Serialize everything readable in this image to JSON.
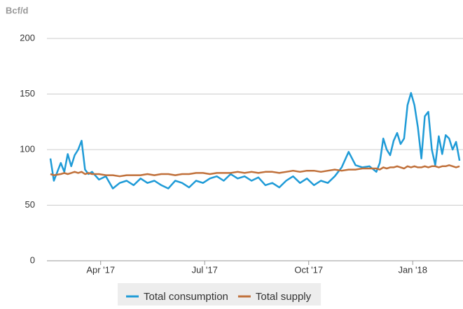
{
  "chart_data": {
    "type": "line",
    "y_label": "Bcf/d",
    "x": [
      1.55,
      1.65,
      1.85,
      1.95,
      2.05,
      2.15,
      2.25,
      2.35,
      2.45,
      2.55,
      2.65,
      2.75,
      2.95,
      3.15,
      3.35,
      3.55,
      3.75,
      3.95,
      4.15,
      4.35,
      4.55,
      4.75,
      4.95,
      5.15,
      5.35,
      5.55,
      5.75,
      5.95,
      6.15,
      6.35,
      6.55,
      6.75,
      6.95,
      7.15,
      7.35,
      7.55,
      7.75,
      7.95,
      8.15,
      8.35,
      8.55,
      8.75,
      8.95,
      9.15,
      9.35,
      9.55,
      9.75,
      9.95,
      10.15,
      10.35,
      10.55,
      10.75,
      10.95,
      11.05,
      11.15,
      11.25,
      11.35,
      11.45,
      11.55,
      11.65,
      11.75,
      11.85,
      11.95,
      12.05,
      12.15,
      12.25,
      12.35,
      12.45,
      12.55,
      12.65,
      12.75,
      12.85,
      12.95,
      13.05,
      13.15,
      13.25,
      13.35
    ],
    "series": [
      {
        "name": "Total consumption",
        "color": "#1f9bd7",
        "values": [
          92,
          72,
          88,
          80,
          96,
          85,
          95,
          100,
          108,
          82,
          78,
          80,
          73,
          76,
          65,
          70,
          72,
          68,
          74,
          70,
          72,
          68,
          65,
          72,
          70,
          66,
          72,
          70,
          74,
          76,
          72,
          78,
          74,
          76,
          72,
          75,
          68,
          70,
          66,
          72,
          76,
          70,
          74,
          68,
          72,
          70,
          76,
          84,
          98,
          86,
          84,
          85,
          80,
          88,
          110,
          100,
          95,
          108,
          115,
          105,
          110,
          140,
          151,
          140,
          120,
          92,
          130,
          134,
          100,
          86,
          112,
          96,
          113,
          110,
          100,
          107,
          90
        ]
      },
      {
        "name": "Total supply",
        "color": "#c0703a",
        "values": [
          78,
          77,
          78,
          79,
          78,
          79,
          80,
          79,
          80,
          78,
          79,
          78,
          78,
          77,
          77,
          76,
          77,
          77,
          77,
          78,
          77,
          78,
          78,
          77,
          78,
          78,
          79,
          79,
          78,
          79,
          79,
          79,
          80,
          79,
          80,
          79,
          80,
          80,
          79,
          80,
          81,
          80,
          81,
          81,
          80,
          81,
          82,
          81,
          82,
          82,
          83,
          83,
          83,
          82,
          84,
          83,
          84,
          84,
          85,
          84,
          83,
          85,
          84,
          85,
          84,
          84,
          85,
          84,
          85,
          85,
          84,
          85,
          85,
          86,
          85,
          84,
          85
        ]
      }
    ],
    "xlim": [
      1.45,
      13.45
    ],
    "xticks": [
      {
        "value": 3,
        "label": "Apr '17"
      },
      {
        "value": 6,
        "label": "Jul '17"
      },
      {
        "value": 9,
        "label": "Oct '17"
      },
      {
        "value": 12,
        "label": "Jan '18"
      }
    ],
    "ylim": [
      0,
      200
    ],
    "yticks": [
      0,
      50,
      100,
      150,
      200
    ],
    "grid": true,
    "legend": "bottom"
  }
}
